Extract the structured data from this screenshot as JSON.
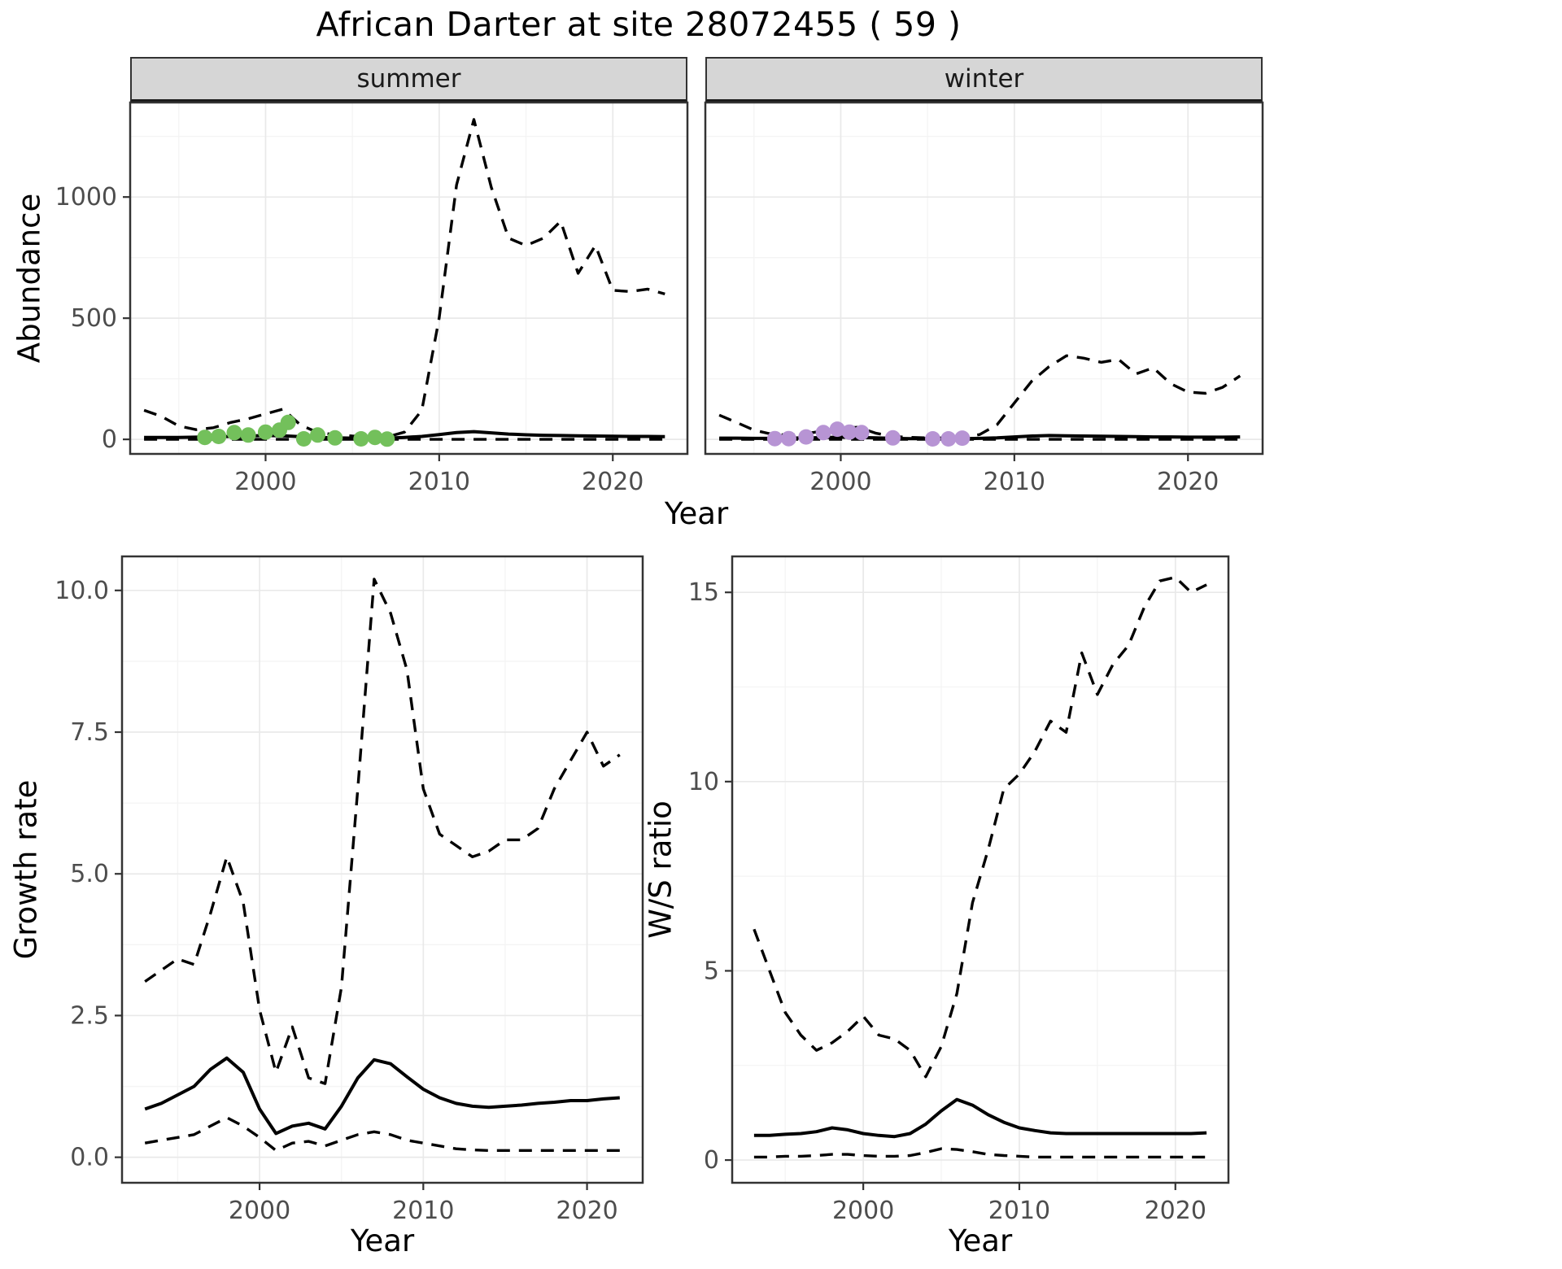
{
  "title": "African Darter at site 28072455 ( 59 )",
  "labels": {
    "x_axis": "Year",
    "abundance": "Abundance",
    "growth_rate": "Growth rate",
    "ws_ratio": "W/S ratio"
  },
  "style": {
    "line_color": "#000000",
    "grid_major": "#e9e9e9",
    "grid_minor": "#f4f4f4",
    "panel_border": "#333333",
    "tick_color": "#333333",
    "tick_label_color": "#4d4d4d",
    "strip_background": "#d6d6d6",
    "strip_text_color": "#1a1a1a",
    "summer_point_color": "#73c05b",
    "winter_point_color": "#b794d4"
  },
  "chart_data": [
    {
      "id": "abundance_summer",
      "type": "line",
      "facet_label": "summer",
      "xlabel": "Year",
      "ylabel": "Abundance",
      "xlim": [
        1992.2,
        2024.3
      ],
      "ylim": [
        -60,
        1390
      ],
      "xticks": [
        2000,
        2010,
        2020
      ],
      "xtick_labels": [
        "2000",
        "2010",
        "2020"
      ],
      "yticks": [
        0,
        500,
        1000
      ],
      "ytick_labels": [
        "0",
        "500",
        "1000"
      ],
      "x_minor": [
        1995,
        2005,
        2015
      ],
      "y_minor": [
        250,
        750,
        1250
      ],
      "show_y_tick_labels": true,
      "x": [
        1993,
        1994,
        1995,
        1996,
        1997,
        1998,
        1999,
        2000,
        2001,
        2002,
        2003,
        2004,
        2005,
        2006,
        2007,
        2008,
        2009,
        2010,
        2011,
        2012,
        2013,
        2014,
        2015,
        2016,
        2017,
        2018,
        2019,
        2020,
        2021,
        2022,
        2023
      ],
      "series": [
        {
          "name": "upper-ci",
          "style": "dashed",
          "values": [
            120,
            95,
            55,
            40,
            48,
            70,
            85,
            105,
            125,
            60,
            28,
            20,
            14,
            10,
            10,
            30,
            120,
            500,
            1050,
            1320,
            1040,
            830,
            800,
            830,
            900,
            685,
            800,
            615,
            610,
            620,
            600
          ]
        },
        {
          "name": "mean",
          "style": "solid",
          "values": [
            8,
            8,
            8,
            9,
            10,
            12,
            14,
            16,
            15,
            11,
            8,
            6,
            5,
            5,
            5,
            8,
            12,
            20,
            28,
            32,
            27,
            22,
            19,
            17,
            16,
            15,
            14,
            13,
            12,
            12,
            11
          ]
        },
        {
          "name": "lower-ci",
          "style": "dashed",
          "values": [
            0,
            0,
            0,
            0,
            0,
            0,
            0,
            0,
            0,
            0,
            0,
            0,
            0,
            0,
            0,
            0,
            0,
            0,
            0,
            0,
            0,
            0,
            0,
            0,
            0,
            0,
            0,
            0,
            0,
            0,
            0
          ]
        }
      ],
      "points": {
        "name": "observed-counts-summer",
        "color": "#73c05b",
        "x": [
          1996.5,
          1997.3,
          1998.2,
          1999.0,
          2000.0,
          2000.8,
          2001.3,
          2002.2,
          2003.0,
          2004.0,
          2005.5,
          2006.3,
          2007.0
        ],
        "y": [
          8,
          12,
          28,
          18,
          30,
          38,
          70,
          2,
          18,
          6,
          2,
          8,
          1
        ]
      }
    },
    {
      "id": "abundance_winter",
      "type": "line",
      "facet_label": "winter",
      "xlabel": "Year",
      "ylabel": "Abundance",
      "xlim": [
        1992.2,
        2024.3
      ],
      "ylim": [
        -60,
        1390
      ],
      "xticks": [
        2000,
        2010,
        2020
      ],
      "xtick_labels": [
        "2000",
        "2010",
        "2020"
      ],
      "yticks": [
        0,
        500,
        1000
      ],
      "ytick_labels": [
        "0",
        "500",
        "1000"
      ],
      "x_minor": [
        1995,
        2005,
        2015
      ],
      "y_minor": [
        250,
        750,
        1250
      ],
      "show_y_tick_labels": false,
      "x": [
        1993,
        1994,
        1995,
        1996,
        1997,
        1998,
        1999,
        2000,
        2001,
        2002,
        2003,
        2004,
        2005,
        2006,
        2007,
        2008,
        2009,
        2010,
        2011,
        2012,
        2013,
        2014,
        2015,
        2016,
        2017,
        2018,
        2019,
        2020,
        2021,
        2022,
        2023
      ],
      "series": [
        {
          "name": "upper-ci",
          "style": "dashed",
          "values": [
            100,
            70,
            38,
            22,
            18,
            24,
            35,
            46,
            50,
            26,
            12,
            8,
            6,
            6,
            8,
            20,
            60,
            150,
            240,
            300,
            345,
            335,
            318,
            330,
            270,
            295,
            230,
            195,
            190,
            215,
            262
          ]
        },
        {
          "name": "mean",
          "style": "solid",
          "values": [
            5,
            5,
            4,
            4,
            5,
            6,
            7,
            9,
            8,
            6,
            4,
            3,
            3,
            3,
            3,
            4,
            6,
            10,
            14,
            16,
            15,
            14,
            13,
            12,
            11,
            10,
            10,
            9,
            9,
            9,
            10
          ]
        },
        {
          "name": "lower-ci",
          "style": "dashed",
          "values": [
            0,
            0,
            0,
            0,
            0,
            0,
            0,
            0,
            0,
            0,
            0,
            0,
            0,
            0,
            0,
            0,
            0,
            0,
            0,
            0,
            0,
            0,
            0,
            0,
            0,
            0,
            0,
            0,
            0,
            0,
            0
          ]
        }
      ],
      "points": {
        "name": "observed-counts-winter",
        "color": "#b794d4",
        "x": [
          1996.2,
          1997.0,
          1998.0,
          1999.0,
          1999.8,
          2000.5,
          2001.2,
          2003.0,
          2005.3,
          2006.2,
          2007.0
        ],
        "y": [
          3,
          3,
          10,
          28,
          42,
          30,
          28,
          6,
          2,
          2,
          5
        ]
      }
    },
    {
      "id": "growth_rate",
      "type": "line",
      "facet_label": "",
      "xlabel": "Year",
      "ylabel": "Growth rate",
      "xlim": [
        1991.6,
        2023.4
      ],
      "ylim": [
        -0.45,
        10.6
      ],
      "xticks": [
        2000,
        2010,
        2020
      ],
      "xtick_labels": [
        "2000",
        "2010",
        "2020"
      ],
      "yticks": [
        0,
        2.5,
        5,
        7.5,
        10
      ],
      "ytick_labels": [
        "0.0",
        "2.5",
        "5.0",
        "7.5",
        "10.0"
      ],
      "x_minor": [
        1995,
        2005,
        2015
      ],
      "y_minor": [
        1.25,
        3.75,
        6.25,
        8.75
      ],
      "show_y_tick_labels": true,
      "x": [
        1993,
        1994,
        1995,
        1996,
        1997,
        1998,
        1999,
        2000,
        2001,
        2002,
        2003,
        2004,
        2005,
        2006,
        2007,
        2008,
        2009,
        2010,
        2011,
        2012,
        2013,
        2014,
        2015,
        2016,
        2017,
        2018,
        2019,
        2020,
        2021,
        2022
      ],
      "series": [
        {
          "name": "upper-ci",
          "style": "dashed",
          "values": [
            3.1,
            3.3,
            3.5,
            3.4,
            4.3,
            5.3,
            4.5,
            2.6,
            1.5,
            2.3,
            1.4,
            1.3,
            3.0,
            6.5,
            10.2,
            9.6,
            8.6,
            6.5,
            5.7,
            5.5,
            5.3,
            5.4,
            5.6,
            5.6,
            5.8,
            6.5,
            7.0,
            7.5,
            6.9,
            7.1
          ]
        },
        {
          "name": "mean",
          "style": "solid",
          "values": [
            0.85,
            0.95,
            1.1,
            1.25,
            1.55,
            1.75,
            1.5,
            0.85,
            0.42,
            0.55,
            0.6,
            0.5,
            0.9,
            1.4,
            1.72,
            1.65,
            1.42,
            1.2,
            1.05,
            0.95,
            0.9,
            0.88,
            0.9,
            0.92,
            0.95,
            0.97,
            1.0,
            1.0,
            1.03,
            1.05
          ]
        },
        {
          "name": "lower-ci",
          "style": "dashed",
          "values": [
            0.25,
            0.3,
            0.35,
            0.4,
            0.55,
            0.7,
            0.55,
            0.35,
            0.12,
            0.25,
            0.28,
            0.2,
            0.3,
            0.4,
            0.45,
            0.4,
            0.3,
            0.25,
            0.2,
            0.15,
            0.13,
            0.12,
            0.12,
            0.12,
            0.12,
            0.12,
            0.12,
            0.12,
            0.12,
            0.12
          ]
        }
      ]
    },
    {
      "id": "ws_ratio",
      "type": "line",
      "facet_label": "",
      "xlabel": "Year",
      "ylabel": "W/S ratio",
      "xlim": [
        1991.6,
        2023.4
      ],
      "ylim": [
        -0.6,
        15.95
      ],
      "xticks": [
        2000,
        2010,
        2020
      ],
      "xtick_labels": [
        "2000",
        "2010",
        "2020"
      ],
      "yticks": [
        0,
        5,
        10,
        15
      ],
      "ytick_labels": [
        "0",
        "5",
        "10",
        "15"
      ],
      "x_minor": [
        1995,
        2005,
        2015
      ],
      "y_minor": [
        2.5,
        7.5,
        12.5
      ],
      "show_y_tick_labels": true,
      "x": [
        1993,
        1994,
        1995,
        1996,
        1997,
        1998,
        1999,
        2000,
        2001,
        2002,
        2003,
        2004,
        2005,
        2006,
        2007,
        2008,
        2009,
        2010,
        2011,
        2012,
        2013,
        2014,
        2015,
        2016,
        2017,
        2018,
        2019,
        2020,
        2021,
        2022
      ],
      "series": [
        {
          "name": "upper-ci",
          "style": "dashed",
          "values": [
            6.1,
            5.0,
            3.9,
            3.3,
            2.9,
            3.1,
            3.4,
            3.8,
            3.3,
            3.2,
            2.9,
            2.2,
            3.0,
            4.4,
            6.8,
            8.2,
            9.8,
            10.2,
            10.8,
            11.6,
            11.3,
            13.4,
            12.3,
            13.1,
            13.6,
            14.6,
            15.3,
            15.4,
            15.0,
            15.2
          ]
        },
        {
          "name": "mean",
          "style": "solid",
          "values": [
            0.65,
            0.65,
            0.68,
            0.7,
            0.75,
            0.85,
            0.8,
            0.7,
            0.65,
            0.62,
            0.7,
            0.95,
            1.3,
            1.6,
            1.45,
            1.2,
            1.0,
            0.85,
            0.78,
            0.72,
            0.7,
            0.7,
            0.7,
            0.7,
            0.7,
            0.7,
            0.7,
            0.7,
            0.7,
            0.72
          ]
        },
        {
          "name": "lower-ci",
          "style": "dashed",
          "values": [
            0.08,
            0.08,
            0.1,
            0.1,
            0.12,
            0.15,
            0.15,
            0.12,
            0.1,
            0.1,
            0.12,
            0.2,
            0.3,
            0.28,
            0.22,
            0.15,
            0.12,
            0.1,
            0.08,
            0.08,
            0.08,
            0.08,
            0.08,
            0.08,
            0.08,
            0.08,
            0.08,
            0.08,
            0.08,
            0.08
          ]
        }
      ]
    }
  ]
}
